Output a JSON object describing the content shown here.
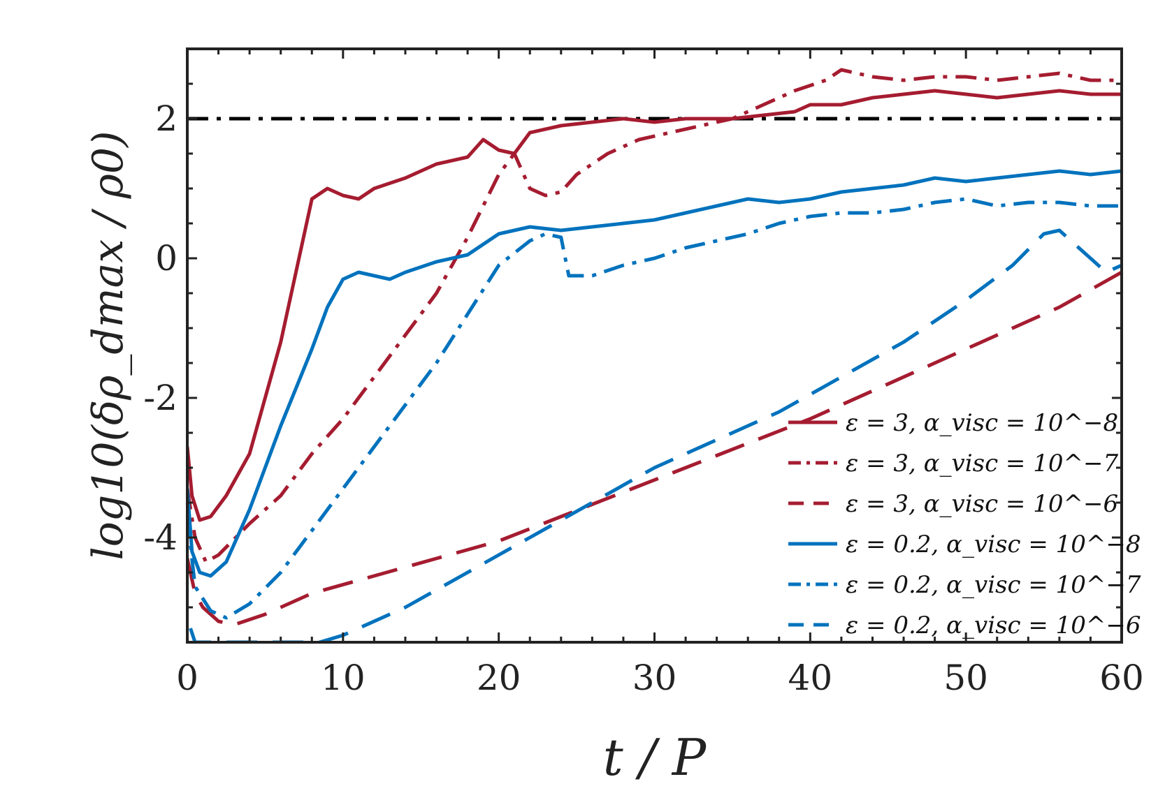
{
  "chart_data": {
    "type": "line",
    "xlabel": "t / P",
    "ylabel": "log10(δρ_dmax / ρ0)",
    "xlim": [
      0,
      60
    ],
    "ylim": [
      -5.5,
      3
    ],
    "xticks": [
      0,
      10,
      20,
      30,
      40,
      50,
      60
    ],
    "yticks": [
      -4,
      -2,
      0,
      2
    ],
    "ytick_labels": [
      "-4",
      "-2",
      "0",
      "2"
    ],
    "reference_line": {
      "y": 2,
      "style": "dash-dot",
      "color": "#000000"
    },
    "legend_position": "lower-right",
    "series": [
      {
        "name": "ε = 3, α_visc = 10^−8",
        "color": "#A51C30",
        "style": "solid",
        "points": [
          [
            0,
            -2.7
          ],
          [
            0.3,
            -3.4
          ],
          [
            0.8,
            -3.75
          ],
          [
            1.5,
            -3.7
          ],
          [
            2.5,
            -3.4
          ],
          [
            4,
            -2.8
          ],
          [
            6,
            -1.2
          ],
          [
            8,
            0.85
          ],
          [
            9,
            1.0
          ],
          [
            10,
            0.9
          ],
          [
            11,
            0.85
          ],
          [
            12,
            1.0
          ],
          [
            14,
            1.15
          ],
          [
            16,
            1.35
          ],
          [
            18,
            1.45
          ],
          [
            19,
            1.7
          ],
          [
            20,
            1.55
          ],
          [
            21,
            1.5
          ],
          [
            22,
            1.8
          ],
          [
            24,
            1.9
          ],
          [
            26,
            1.95
          ],
          [
            28,
            2.0
          ],
          [
            30,
            1.95
          ],
          [
            32,
            2.0
          ],
          [
            35,
            2.0
          ],
          [
            37,
            2.05
          ],
          [
            39,
            2.1
          ],
          [
            40,
            2.2
          ],
          [
            42,
            2.2
          ],
          [
            44,
            2.3
          ],
          [
            46,
            2.35
          ],
          [
            48,
            2.4
          ],
          [
            50,
            2.35
          ],
          [
            52,
            2.3
          ],
          [
            54,
            2.35
          ],
          [
            56,
            2.4
          ],
          [
            58,
            2.35
          ],
          [
            60,
            2.35
          ]
        ]
      },
      {
        "name": "ε = 3, α_visc = 10^−7",
        "color": "#A51C30",
        "style": "dash-dot",
        "points": [
          [
            0,
            -3.3
          ],
          [
            0.5,
            -4.0
          ],
          [
            1.2,
            -4.35
          ],
          [
            2,
            -4.25
          ],
          [
            4,
            -3.8
          ],
          [
            6,
            -3.4
          ],
          [
            8,
            -2.8
          ],
          [
            10,
            -2.3
          ],
          [
            12,
            -1.7
          ],
          [
            14,
            -1.1
          ],
          [
            16,
            -0.5
          ],
          [
            18,
            0.3
          ],
          [
            20,
            1.2
          ],
          [
            21,
            1.5
          ],
          [
            22,
            1.0
          ],
          [
            23,
            0.9
          ],
          [
            24,
            0.95
          ],
          [
            25,
            1.2
          ],
          [
            27,
            1.5
          ],
          [
            29,
            1.7
          ],
          [
            31,
            1.8
          ],
          [
            33,
            1.9
          ],
          [
            35,
            2.0
          ],
          [
            37,
            2.2
          ],
          [
            39,
            2.4
          ],
          [
            41,
            2.55
          ],
          [
            42,
            2.7
          ],
          [
            44,
            2.6
          ],
          [
            46,
            2.55
          ],
          [
            48,
            2.6
          ],
          [
            50,
            2.6
          ],
          [
            52,
            2.55
          ],
          [
            54,
            2.6
          ],
          [
            56,
            2.65
          ],
          [
            58,
            2.55
          ],
          [
            60,
            2.55
          ]
        ]
      },
      {
        "name": "ε = 3, α_visc = 10^−6",
        "color": "#A51C30",
        "style": "dashed",
        "points": [
          [
            0,
            -4.3
          ],
          [
            0.5,
            -4.8
          ],
          [
            1,
            -5.0
          ],
          [
            2,
            -5.2
          ],
          [
            3,
            -5.25
          ],
          [
            5,
            -5.1
          ],
          [
            8,
            -4.8
          ],
          [
            12,
            -4.55
          ],
          [
            16,
            -4.3
          ],
          [
            20,
            -4.05
          ],
          [
            24,
            -3.7
          ],
          [
            28,
            -3.35
          ],
          [
            32,
            -3.0
          ],
          [
            36,
            -2.65
          ],
          [
            40,
            -2.3
          ],
          [
            44,
            -1.9
          ],
          [
            48,
            -1.5
          ],
          [
            52,
            -1.1
          ],
          [
            56,
            -0.7
          ],
          [
            60,
            -0.2
          ]
        ]
      },
      {
        "name": "ε = 0.2, α_visc = 10^−8",
        "color": "#0072BD",
        "style": "solid",
        "points": [
          [
            0,
            -3.3
          ],
          [
            0.3,
            -4.2
          ],
          [
            0.8,
            -4.5
          ],
          [
            1.5,
            -4.55
          ],
          [
            2.5,
            -4.35
          ],
          [
            4,
            -3.6
          ],
          [
            6,
            -2.4
          ],
          [
            8,
            -1.3
          ],
          [
            9,
            -0.7
          ],
          [
            10,
            -0.3
          ],
          [
            11,
            -0.2
          ],
          [
            12,
            -0.25
          ],
          [
            13,
            -0.3
          ],
          [
            14,
            -0.2
          ],
          [
            16,
            -0.05
          ],
          [
            18,
            0.05
          ],
          [
            20,
            0.35
          ],
          [
            22,
            0.45
          ],
          [
            24,
            0.4
          ],
          [
            26,
            0.45
          ],
          [
            28,
            0.5
          ],
          [
            30,
            0.55
          ],
          [
            32,
            0.65
          ],
          [
            34,
            0.75
          ],
          [
            36,
            0.85
          ],
          [
            38,
            0.8
          ],
          [
            40,
            0.85
          ],
          [
            42,
            0.95
          ],
          [
            44,
            1.0
          ],
          [
            46,
            1.05
          ],
          [
            48,
            1.15
          ],
          [
            50,
            1.1
          ],
          [
            52,
            1.15
          ],
          [
            54,
            1.2
          ],
          [
            56,
            1.25
          ],
          [
            58,
            1.2
          ],
          [
            60,
            1.25
          ]
        ]
      },
      {
        "name": "ε = 0.2, α_visc = 10^−7",
        "color": "#0072BD",
        "style": "dash-dot",
        "points": [
          [
            0,
            -3.7
          ],
          [
            0.5,
            -4.7
          ],
          [
            1.5,
            -5.05
          ],
          [
            2.5,
            -5.15
          ],
          [
            4,
            -4.95
          ],
          [
            6,
            -4.5
          ],
          [
            8,
            -3.9
          ],
          [
            10,
            -3.3
          ],
          [
            12,
            -2.7
          ],
          [
            14,
            -2.1
          ],
          [
            16,
            -1.5
          ],
          [
            18,
            -0.8
          ],
          [
            20,
            -0.1
          ],
          [
            22,
            0.25
          ],
          [
            23,
            0.35
          ],
          [
            24,
            0.3
          ],
          [
            24.5,
            -0.25
          ],
          [
            26,
            -0.25
          ],
          [
            28,
            -0.1
          ],
          [
            30,
            0.0
          ],
          [
            32,
            0.15
          ],
          [
            34,
            0.25
          ],
          [
            36,
            0.35
          ],
          [
            38,
            0.5
          ],
          [
            40,
            0.6
          ],
          [
            42,
            0.65
          ],
          [
            44,
            0.65
          ],
          [
            46,
            0.7
          ],
          [
            48,
            0.8
          ],
          [
            50,
            0.85
          ],
          [
            52,
            0.75
          ],
          [
            54,
            0.8
          ],
          [
            56,
            0.8
          ],
          [
            58,
            0.75
          ],
          [
            60,
            0.75
          ]
        ]
      },
      {
        "name": "ε = 0.2, α_visc = 10^−6",
        "color": "#0072BD",
        "style": "dashed",
        "points": [
          [
            0.2,
            -5.3
          ],
          [
            0.5,
            -5.5
          ],
          [
            8.5,
            -5.5
          ],
          [
            10,
            -5.4
          ],
          [
            14,
            -5.0
          ],
          [
            18,
            -4.5
          ],
          [
            22,
            -4.0
          ],
          [
            26,
            -3.5
          ],
          [
            30,
            -3.0
          ],
          [
            34,
            -2.6
          ],
          [
            38,
            -2.2
          ],
          [
            42,
            -1.7
          ],
          [
            46,
            -1.2
          ],
          [
            50,
            -0.6
          ],
          [
            53,
            -0.1
          ],
          [
            55,
            0.35
          ],
          [
            56,
            0.4
          ],
          [
            57,
            0.2
          ],
          [
            58,
            0.0
          ],
          [
            59,
            -0.2
          ],
          [
            60,
            -0.1
          ]
        ]
      }
    ]
  }
}
